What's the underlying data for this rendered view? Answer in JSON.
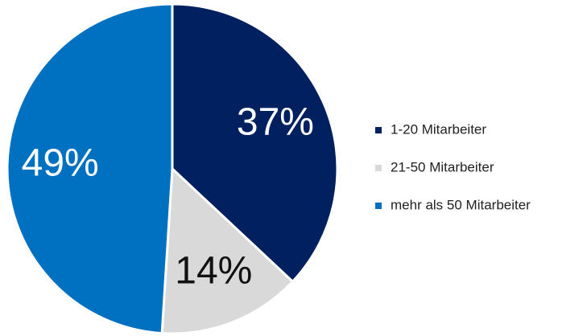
{
  "chart_data": {
    "type": "pie",
    "categories": [
      "1-20 Mitarbeiter",
      "21-50 Mitarbeiter",
      "mehr als 50 Mitarbeiter"
    ],
    "values": [
      37,
      14,
      49
    ],
    "value_labels": [
      "37%",
      "14%",
      "49%"
    ],
    "colors": [
      "#002060",
      "#d9d9d9",
      "#0070c0"
    ],
    "legend": "right"
  }
}
